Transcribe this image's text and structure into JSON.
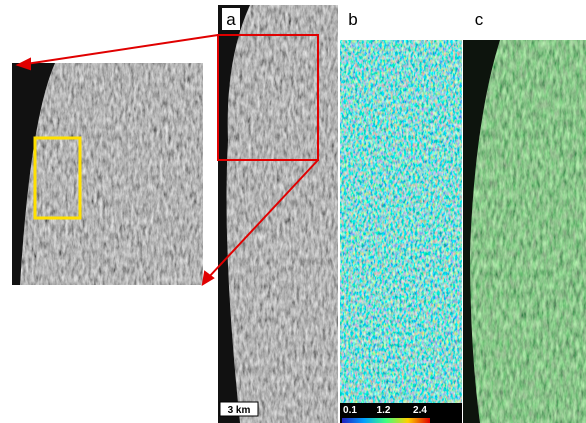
{
  "panels": [
    {
      "label": "a"
    },
    {
      "label": "b"
    },
    {
      "label": "c"
    }
  ],
  "scale_bar": "3 km",
  "colorbar": {
    "ticks": [
      0.1,
      1.2,
      2.4
    ]
  }
}
